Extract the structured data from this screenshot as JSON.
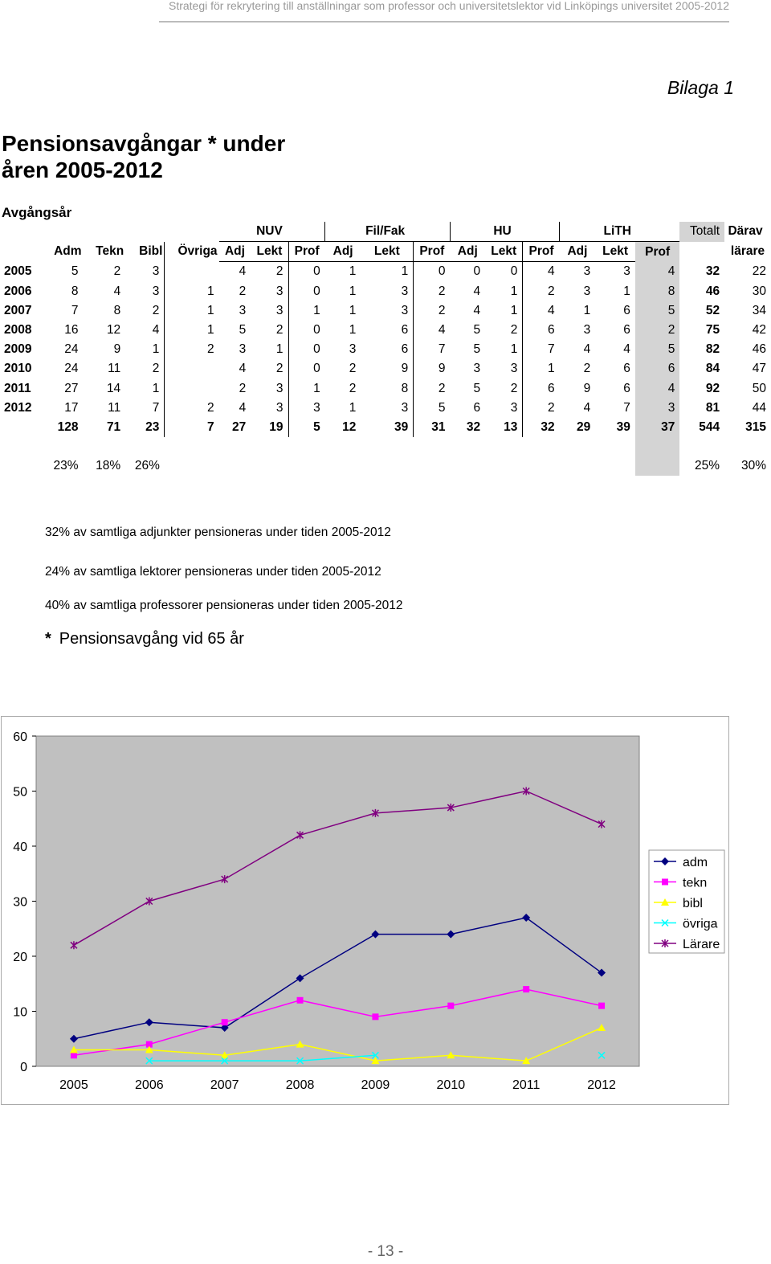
{
  "header": {
    "text": "Strategi för rekrytering till anställningar som professor och universitetslektor vid Linköpings universitet 2005-2012"
  },
  "bilaga": "Bilaga 1",
  "title_line1": "Pensionsavgångar * under",
  "title_line2": "åren 2005-2012",
  "subtitle": "Avgångsår",
  "table": {
    "groups": [
      "NUV",
      "Fil/Fak",
      "HU",
      "LiTH",
      "Totalt",
      "Därav"
    ],
    "columns": [
      "Adm",
      "Tekn",
      "Bibl",
      "Övriga",
      "Adj",
      "Lekt",
      "Prof",
      "Adj",
      "Lekt",
      "Prof",
      "Adj",
      "Lekt",
      "Prof",
      "Adj",
      "Lekt",
      "Prof",
      "",
      "lärare"
    ],
    "rows": [
      [
        "2005",
        "5",
        "2",
        "3",
        "",
        "4",
        "2",
        "0",
        "1",
        "1",
        "0",
        "0",
        "0",
        "4",
        "3",
        "3",
        "4",
        "32",
        "22"
      ],
      [
        "2006",
        "8",
        "4",
        "3",
        "1",
        "2",
        "3",
        "0",
        "1",
        "3",
        "2",
        "4",
        "1",
        "2",
        "3",
        "1",
        "8",
        "46",
        "30"
      ],
      [
        "2007",
        "7",
        "8",
        "2",
        "1",
        "3",
        "3",
        "1",
        "1",
        "3",
        "2",
        "4",
        "1",
        "4",
        "1",
        "6",
        "5",
        "52",
        "34"
      ],
      [
        "2008",
        "16",
        "12",
        "4",
        "1",
        "5",
        "2",
        "0",
        "1",
        "6",
        "4",
        "5",
        "2",
        "6",
        "3",
        "6",
        "2",
        "75",
        "42"
      ],
      [
        "2009",
        "24",
        "9",
        "1",
        "2",
        "3",
        "1",
        "0",
        "3",
        "6",
        "7",
        "5",
        "1",
        "7",
        "4",
        "4",
        "5",
        "82",
        "46"
      ],
      [
        "2010",
        "24",
        "11",
        "2",
        "",
        "4",
        "2",
        "0",
        "2",
        "9",
        "9",
        "3",
        "3",
        "1",
        "2",
        "6",
        "6",
        "84",
        "47"
      ],
      [
        "2011",
        "27",
        "14",
        "1",
        "",
        "2",
        "3",
        "1",
        "2",
        "8",
        "2",
        "5",
        "2",
        "6",
        "9",
        "6",
        "4",
        "92",
        "50"
      ],
      [
        "2012",
        "17",
        "11",
        "7",
        "2",
        "4",
        "3",
        "3",
        "1",
        "3",
        "5",
        "6",
        "3",
        "2",
        "4",
        "7",
        "3",
        "81",
        "44"
      ]
    ],
    "totals": [
      "",
      "128",
      "71",
      "23",
      "7",
      "27",
      "19",
      "5",
      "12",
      "39",
      "31",
      "32",
      "13",
      "32",
      "29",
      "39",
      "37",
      "544",
      "315"
    ],
    "percents": [
      "",
      "23%",
      "18%",
      "26%",
      "",
      "",
      "",
      "",
      "",
      "",
      "",
      "",
      "",
      "",
      "",
      "",
      "",
      "25%",
      "30%"
    ]
  },
  "notes": [
    "32% av samtliga adjunkter pensioneras under tiden 2005-2012",
    "24% av samtliga lektorer pensioneras under tiden 2005-2012",
    "40% av samtliga professorer pensioneras under tiden 2005-2012"
  ],
  "footnote_star": "*",
  "footnote_text": "Pensionsavgång vid 65 år",
  "chart_data": {
    "type": "line",
    "categories": [
      "2005",
      "2006",
      "2007",
      "2008",
      "2009",
      "2010",
      "2011",
      "2012"
    ],
    "ylim": [
      0,
      60
    ],
    "yticks": [
      "0",
      "10",
      "20",
      "30",
      "40",
      "50",
      "60"
    ],
    "grid": false,
    "legend_placement": "right",
    "series": [
      {
        "name": "adm",
        "color": "#000080",
        "marker": "diamond",
        "values": [
          5,
          8,
          7,
          16,
          24,
          24,
          27,
          17
        ]
      },
      {
        "name": "tekn",
        "color": "#ff00ff",
        "marker": "square",
        "values": [
          2,
          4,
          8,
          12,
          9,
          11,
          14,
          11
        ]
      },
      {
        "name": "bibl",
        "color": "#ffff00",
        "marker": "triangle",
        "values": [
          3,
          3,
          2,
          4,
          1,
          2,
          1,
          7
        ]
      },
      {
        "name": "övriga",
        "color": "#00ffff",
        "marker": "x",
        "values": [
          null,
          1,
          1,
          1,
          2,
          null,
          null,
          2
        ]
      },
      {
        "name": "Lärare",
        "color": "#800080",
        "marker": "star",
        "values": [
          22,
          30,
          34,
          42,
          46,
          47,
          50,
          44
        ]
      }
    ]
  },
  "page_number": "- 13 -"
}
